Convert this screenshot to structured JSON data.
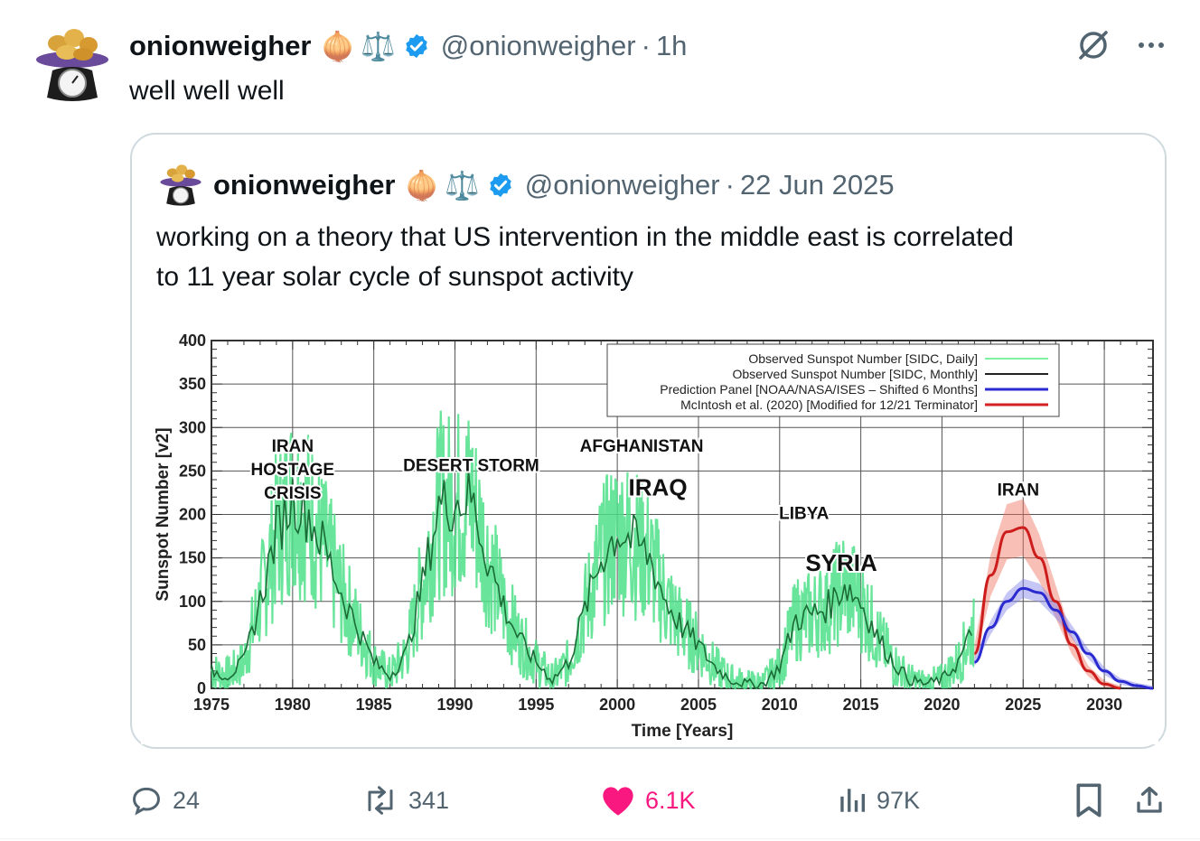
{
  "post": {
    "author_name": "onionweigher",
    "name_emojis": [
      "🧅",
      "⚖️"
    ],
    "verified": true,
    "handle": "@onionweigher",
    "separator": "·",
    "time": "1h",
    "text": "well well well",
    "icons": [
      "grok-icon",
      "more-icon"
    ]
  },
  "quote": {
    "author_name": "onionweigher",
    "name_emojis": [
      "🧅",
      "⚖️"
    ],
    "verified": true,
    "handle": "@onionweigher",
    "separator": "·",
    "date": "22 Jun 2025",
    "text_line1": "working on a theory that US intervention in the middle east is correlated",
    "text_line2": "to 11 year solar cycle of sunspot activity"
  },
  "chart_data": {
    "type": "line",
    "xlabel": "Time [Years]",
    "ylabel": "Sunspot Number [v2]",
    "xlim": [
      1975,
      2033
    ],
    "ylim": [
      0,
      400
    ],
    "x_ticks": [
      "1975",
      "1980",
      "1985",
      "1990",
      "1995",
      "2000",
      "2005",
      "2010",
      "2015",
      "2020",
      "2025",
      "2030"
    ],
    "y_ticks": [
      "0",
      "50",
      "100",
      "150",
      "200",
      "250",
      "300",
      "350",
      "400"
    ],
    "grid": true,
    "legend_position": "top-right",
    "legend": [
      {
        "label": "Observed Sunspot Number [SIDC, Daily]",
        "color": "#7ff0a0"
      },
      {
        "label": "Observed Sunspot Number [SIDC, Monthly]",
        "color": "#222222"
      },
      {
        "label": "Prediction Panel [NOAA/NASA/ISES – Shifted 6 Months]",
        "color": "#2a2ad0"
      },
      {
        "label": "McIntosh et al. (2020) [Modified for 12/21 Terminator]",
        "color": "#d42020"
      }
    ],
    "series": [
      {
        "name": "Observed Sunspot Number [SIDC, Monthly]",
        "x": [
          1975,
          1976,
          1977,
          1978,
          1979,
          1980,
          1981,
          1982,
          1983,
          1984,
          1985,
          1986,
          1987,
          1988,
          1989,
          1990,
          1991,
          1992,
          1993,
          1994,
          1995,
          1996,
          1997,
          1998,
          1999,
          2000,
          2001,
          2002,
          2003,
          2004,
          2005,
          2006,
          2007,
          2008,
          2009,
          2010,
          2011,
          2012,
          2013,
          2014,
          2015,
          2016,
          2017,
          2018,
          2019,
          2020,
          2021,
          2022
        ],
        "y": [
          20,
          15,
          30,
          100,
          180,
          220,
          200,
          160,
          110,
          70,
          30,
          15,
          40,
          120,
          210,
          215,
          220,
          150,
          95,
          55,
          30,
          10,
          30,
          90,
          150,
          180,
          170,
          150,
          100,
          70,
          50,
          25,
          10,
          5,
          5,
          25,
          80,
          85,
          95,
          120,
          100,
          60,
          30,
          10,
          5,
          10,
          30,
          70
        ]
      },
      {
        "name": "Prediction Panel [NOAA/NASA/ISES – Shifted 6 Months]",
        "x": [
          2022,
          2023,
          2024,
          2025,
          2026,
          2027,
          2028,
          2029,
          2030,
          2031,
          2032,
          2033
        ],
        "y": [
          30,
          70,
          100,
          115,
          110,
          90,
          65,
          40,
          20,
          8,
          3,
          0
        ]
      },
      {
        "name": "McIntosh et al. (2020) [Modified for 12/21 Terminator]",
        "x": [
          2022,
          2023,
          2024,
          2025,
          2026,
          2027,
          2028,
          2029,
          2030,
          2031
        ],
        "y": [
          40,
          130,
          180,
          185,
          150,
          100,
          50,
          20,
          5,
          0
        ]
      }
    ],
    "annotations": [
      {
        "text": "IRAN",
        "x": 1980.0,
        "y": 272
      },
      {
        "text": "HOSTAGE",
        "x": 1980.0,
        "y": 245
      },
      {
        "text": "CRISIS",
        "x": 1980.0,
        "y": 218
      },
      {
        "text": "DESERT STORM",
        "x": 1991.0,
        "y": 250
      },
      {
        "text": "AFGHANISTAN",
        "x": 2001.5,
        "y": 272
      },
      {
        "text": "IRAQ",
        "x": 2002.5,
        "y": 222
      },
      {
        "text": "LIBYA",
        "x": 2011.5,
        "y": 195
      },
      {
        "text": "SYRIA",
        "x": 2013.8,
        "y": 135
      },
      {
        "text": "IRAN",
        "x": 2024.7,
        "y": 222
      }
    ]
  },
  "actions": {
    "replies": "24",
    "reposts": "341",
    "likes": "6.1K",
    "views": "97K"
  },
  "colors": {
    "accent_blue": "#1d9bf0",
    "like_pink": "#f91880",
    "muted": "#536471",
    "border": "#cfd9de"
  }
}
